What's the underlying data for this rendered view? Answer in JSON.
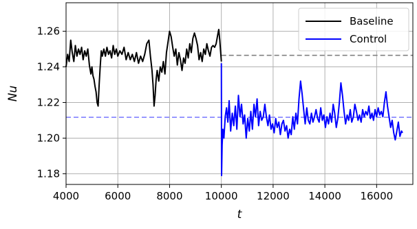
{
  "chart_data": {
    "type": "line",
    "title": "",
    "xlabel": "t",
    "ylabel": "Nu",
    "xlim": [
      4000,
      17400
    ],
    "ylim": [
      1.174,
      1.276
    ],
    "xticks": [
      4000,
      6000,
      8000,
      10000,
      12000,
      14000,
      16000
    ],
    "xtick_labels": [
      "4000",
      "6000",
      "8000",
      "10000",
      "12000",
      "14000",
      "16000"
    ],
    "yticks": [
      1.18,
      1.2,
      1.22,
      1.24,
      1.26
    ],
    "ytick_labels": [
      "1.18",
      "1.20",
      "1.22",
      "1.24",
      "1.26"
    ],
    "grid": true,
    "legend_position": "top-right",
    "series": [
      {
        "name": "Baseline",
        "color": "#000000",
        "x": [
          4000,
          4060,
          4120,
          4180,
          4240,
          4300,
          4360,
          4420,
          4480,
          4540,
          4600,
          4660,
          4720,
          4780,
          4840,
          4900,
          4960,
          5000,
          5040,
          5080,
          5120,
          5160,
          5200,
          5240,
          5280,
          5320,
          5360,
          5400,
          5460,
          5520,
          5580,
          5640,
          5700,
          5760,
          5820,
          5880,
          5940,
          6000,
          6080,
          6160,
          6240,
          6320,
          6400,
          6480,
          6560,
          6640,
          6720,
          6800,
          6880,
          6960,
          7040,
          7120,
          7200,
          7260,
          7320,
          7360,
          7400,
          7440,
          7480,
          7520,
          7580,
          7640,
          7700,
          7760,
          7820,
          7880,
          7940,
          8000,
          8060,
          8120,
          8180,
          8240,
          8300,
          8360,
          8420,
          8480,
          8540,
          8600,
          8660,
          8720,
          8780,
          8840,
          8900,
          8960,
          9020,
          9080,
          9140,
          9200,
          9260,
          9320,
          9380,
          9440,
          9500,
          9560,
          9620,
          9680,
          9740,
          9800,
          9860,
          9900,
          9940,
          9970,
          10000
        ],
        "y": [
          1.24,
          1.247,
          1.243,
          1.255,
          1.248,
          1.243,
          1.252,
          1.246,
          1.25,
          1.247,
          1.251,
          1.244,
          1.249,
          1.246,
          1.25,
          1.241,
          1.236,
          1.24,
          1.235,
          1.233,
          1.229,
          1.226,
          1.22,
          1.218,
          1.23,
          1.24,
          1.249,
          1.246,
          1.25,
          1.246,
          1.251,
          1.247,
          1.249,
          1.245,
          1.252,
          1.247,
          1.25,
          1.246,
          1.249,
          1.247,
          1.251,
          1.244,
          1.248,
          1.244,
          1.247,
          1.243,
          1.248,
          1.242,
          1.246,
          1.243,
          1.247,
          1.253,
          1.255,
          1.246,
          1.238,
          1.23,
          1.218,
          1.224,
          1.233,
          1.238,
          1.232,
          1.24,
          1.237,
          1.243,
          1.236,
          1.248,
          1.254,
          1.26,
          1.257,
          1.251,
          1.246,
          1.25,
          1.241,
          1.248,
          1.244,
          1.238,
          1.245,
          1.242,
          1.25,
          1.245,
          1.253,
          1.248,
          1.256,
          1.259,
          1.256,
          1.252,
          1.244,
          1.248,
          1.243,
          1.25,
          1.247,
          1.253,
          1.249,
          1.246,
          1.251,
          1.252,
          1.251,
          1.253,
          1.258,
          1.261,
          1.255,
          1.249,
          1.243
        ]
      },
      {
        "name": "Control",
        "color": "#0000ff",
        "x": [
          10000,
          10010,
          10030,
          10060,
          10100,
          10150,
          10200,
          10250,
          10300,
          10360,
          10420,
          10480,
          10540,
          10600,
          10660,
          10720,
          10780,
          10840,
          10900,
          10960,
          11020,
          11080,
          11140,
          11200,
          11260,
          11320,
          11380,
          11440,
          11500,
          11560,
          11620,
          11680,
          11740,
          11800,
          11860,
          11920,
          11980,
          12040,
          12100,
          12160,
          12220,
          12280,
          12340,
          12400,
          12460,
          12520,
          12580,
          12640,
          12700,
          12760,
          12820,
          12880,
          12940,
          13000,
          13060,
          13120,
          13180,
          13240,
          13300,
          13360,
          13420,
          13480,
          13540,
          13600,
          13660,
          13720,
          13780,
          13840,
          13900,
          13960,
          14020,
          14080,
          14140,
          14200,
          14260,
          14320,
          14380,
          14440,
          14500,
          14560,
          14620,
          14680,
          14740,
          14800,
          14860,
          14920,
          14980,
          15040,
          15100,
          15160,
          15220,
          15280,
          15340,
          15400,
          15460,
          15520,
          15580,
          15640,
          15700,
          15760,
          15820,
          15880,
          15940,
          16000,
          16060,
          16120,
          16180,
          16240,
          16300,
          16360,
          16420,
          16480,
          16540,
          16600,
          16660,
          16720,
          16780,
          16840,
          16900,
          16960,
          17000
        ],
        "y": [
          1.242,
          1.179,
          1.196,
          1.205,
          1.2,
          1.212,
          1.217,
          1.209,
          1.221,
          1.204,
          1.214,
          1.207,
          1.218,
          1.205,
          1.224,
          1.212,
          1.219,
          1.208,
          1.213,
          1.2,
          1.211,
          1.204,
          1.215,
          1.205,
          1.219,
          1.212,
          1.222,
          1.207,
          1.215,
          1.21,
          1.212,
          1.219,
          1.212,
          1.207,
          1.213,
          1.205,
          1.208,
          1.203,
          1.211,
          1.206,
          1.209,
          1.202,
          1.208,
          1.21,
          1.204,
          1.207,
          1.2,
          1.205,
          1.202,
          1.212,
          1.205,
          1.214,
          1.208,
          1.222,
          1.232,
          1.225,
          1.216,
          1.208,
          1.217,
          1.21,
          1.208,
          1.214,
          1.209,
          1.212,
          1.216,
          1.211,
          1.209,
          1.217,
          1.21,
          1.213,
          1.206,
          1.212,
          1.208,
          1.214,
          1.209,
          1.219,
          1.214,
          1.206,
          1.211,
          1.22,
          1.231,
          1.224,
          1.215,
          1.208,
          1.213,
          1.21,
          1.216,
          1.209,
          1.212,
          1.219,
          1.215,
          1.21,
          1.213,
          1.209,
          1.216,
          1.212,
          1.215,
          1.213,
          1.218,
          1.211,
          1.214,
          1.21,
          1.216,
          1.212,
          1.217,
          1.213,
          1.215,
          1.212,
          1.22,
          1.226,
          1.218,
          1.212,
          1.206,
          1.21,
          1.203,
          1.199,
          1.204,
          1.209,
          1.201,
          1.204,
          1.203
        ]
      }
    ],
    "reference_lines": [
      {
        "y": 1.2465,
        "x_start": 10000,
        "color": "#808080",
        "style": "dashed"
      },
      {
        "y": 1.2117,
        "x_start": 4000,
        "color": "#8080ff",
        "style": "dashed"
      }
    ]
  }
}
